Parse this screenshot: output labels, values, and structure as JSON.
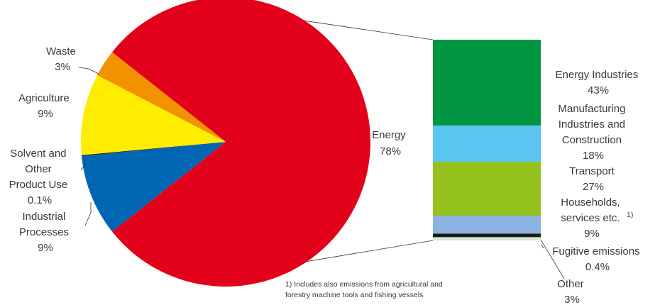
{
  "chart_data": [
    {
      "type": "pie",
      "title": "",
      "slices": [
        {
          "label": "Energy",
          "value_text": "78%",
          "value": 78,
          "color": "#e2001a"
        },
        {
          "label": "Industrial Processes",
          "value_text": "9%",
          "value": 9,
          "color": "#0066b3"
        },
        {
          "label": "Solvent and Other Product Use",
          "value_text": "0.1%",
          "value": 0.1,
          "color": "#1a1a1a"
        },
        {
          "label": "Agriculture",
          "value_text": "9%",
          "value": 9,
          "color": "#ffed00"
        },
        {
          "label": "Waste",
          "value_text": "3%",
          "value": 3,
          "color": "#f39200"
        }
      ]
    },
    {
      "type": "bar",
      "stacked": true,
      "title": "",
      "breakdown_of": "Energy",
      "segments": [
        {
          "label": "Energy Industries",
          "value_text": "43%",
          "value": 43,
          "color": "#009540"
        },
        {
          "label": "Manufacturing Industries and Construction",
          "value_text": "18%",
          "value": 18,
          "color": "#5bc5f2"
        },
        {
          "label": "Transport",
          "value_text": "27%",
          "value": 27,
          "color": "#95c11f"
        },
        {
          "label": "Households, services etc.",
          "value_text": "9%",
          "value": 9,
          "color": "#8db3e2",
          "footnote_ref": "1)"
        },
        {
          "label": "Fugitive emissions",
          "value_text": "0.4%",
          "value": 0.4,
          "color": "#1a1a1a"
        },
        {
          "label": "Other",
          "value_text": "3%",
          "value": 3,
          "color": "#d9ead3"
        }
      ]
    }
  ],
  "labels": {
    "energy": [
      "Energy",
      "78%"
    ],
    "waste": [
      "Waste",
      "3%"
    ],
    "agriculture": [
      "Agriculture",
      "9%"
    ],
    "solvent": [
      "Solvent and",
      "Other",
      "Product Use",
      "0.1%"
    ],
    "industrial": [
      "Industrial",
      "Processes",
      "9%"
    ],
    "energy_industries": [
      "Energy Industries",
      "43%"
    ],
    "manufacturing": [
      "Manufacturing",
      "Industries and",
      "Construction",
      "18%"
    ],
    "transport": [
      "Transport",
      "27%"
    ],
    "households": [
      "Households,",
      "services etc.",
      "9%"
    ],
    "households_ref": "1)",
    "fugitive": [
      "Fugitive emissions",
      "0.4%"
    ],
    "other": [
      "Other",
      "3%"
    ]
  },
  "footnote": [
    "1) Includes also emissions from agricultural and",
    "forestry machine tools and fishing vessels"
  ]
}
